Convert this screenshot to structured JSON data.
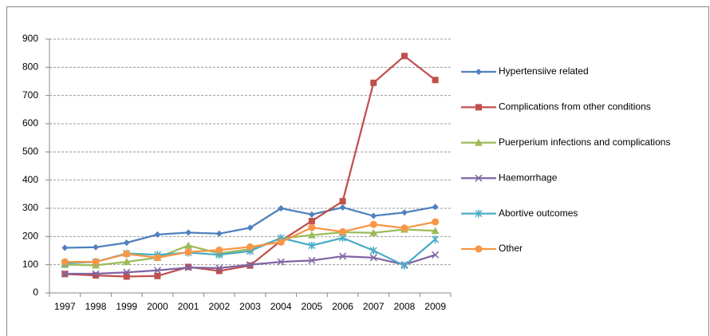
{
  "chart_data": {
    "type": "line",
    "categories": [
      "1997",
      "1998",
      "1999",
      "2000",
      "2001",
      "2002",
      "2003",
      "2004",
      "2005",
      "2006",
      "2007",
      "2008",
      "2009"
    ],
    "series": [
      {
        "name": "Hypertensiive related",
        "color": "#4F81BD",
        "marker": "diamond",
        "values": [
          160,
          162,
          178,
          207,
          214,
          210,
          231,
          300,
          278,
          303,
          273,
          285,
          305
        ]
      },
      {
        "name": "Complications from other conditions",
        "color": "#C0504D",
        "marker": "square",
        "values": [
          67,
          62,
          58,
          60,
          92,
          78,
          97,
          185,
          255,
          325,
          745,
          840,
          755
        ]
      },
      {
        "name": "Puerperium infections and complications",
        "color": "#9BBB59",
        "marker": "triangle",
        "values": [
          100,
          98,
          110,
          125,
          168,
          140,
          155,
          193,
          205,
          215,
          213,
          225,
          220
        ]
      },
      {
        "name": "Haemorrhage",
        "color": "#8064A2",
        "marker": "x",
        "values": [
          68,
          68,
          73,
          80,
          90,
          88,
          100,
          110,
          115,
          130,
          125,
          100,
          135
        ]
      },
      {
        "name": "Abortive outcomes",
        "color": "#4BACC6",
        "marker": "asterisk",
        "values": [
          105,
          110,
          140,
          135,
          143,
          135,
          148,
          195,
          168,
          195,
          150,
          97,
          190
        ]
      },
      {
        "name": "Other",
        "color": "#F79646",
        "marker": "circle",
        "values": [
          110,
          110,
          138,
          125,
          145,
          152,
          163,
          180,
          232,
          217,
          243,
          230,
          252
        ]
      }
    ],
    "ylim": [
      0,
      900
    ],
    "yticks": [
      0,
      100,
      200,
      300,
      400,
      500,
      600,
      700,
      800,
      900
    ],
    "grid": true,
    "legend": "right"
  }
}
